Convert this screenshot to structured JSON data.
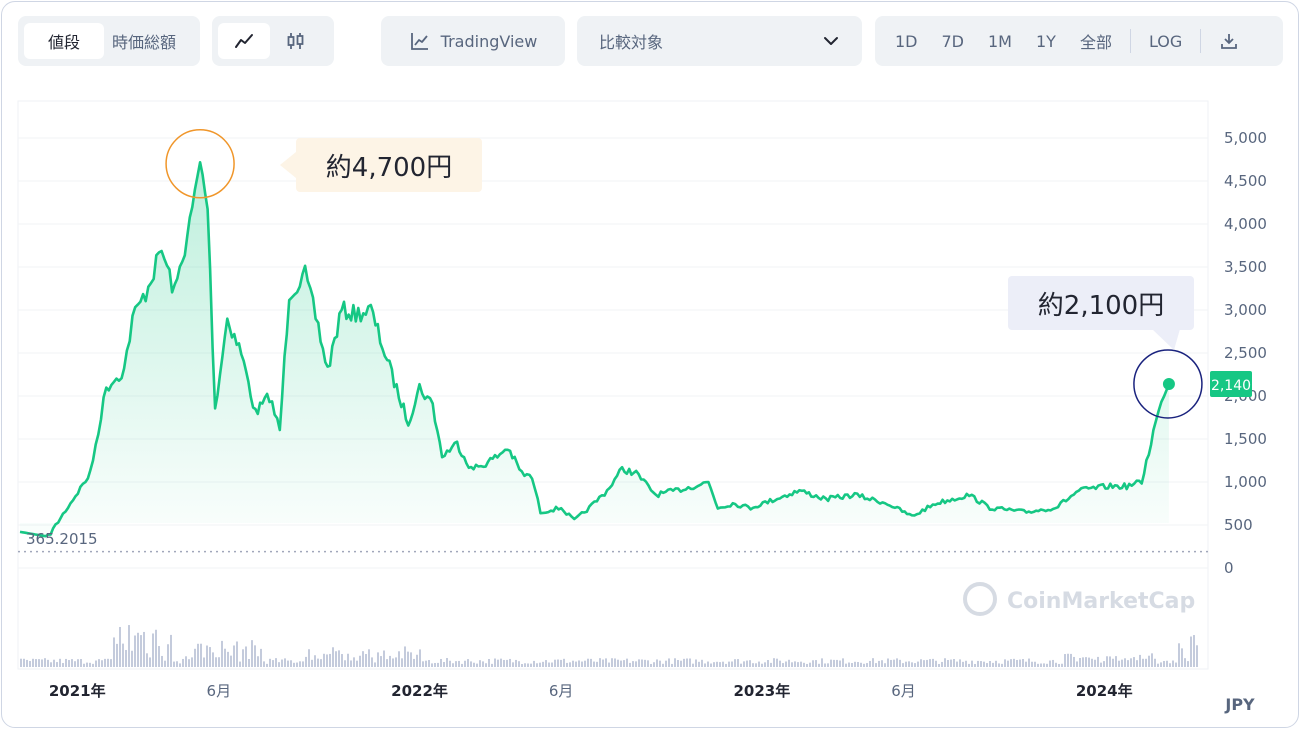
{
  "toolbar": {
    "type_tabs": [
      {
        "label": "値段",
        "active": true
      },
      {
        "label": "時価総額",
        "active": false
      }
    ],
    "style_icons": [
      "line-chart-icon",
      "candlestick-icon"
    ],
    "tradingview_label": "TradingView",
    "compare": {
      "label": "比較対象",
      "icon": "chevron-down-icon"
    },
    "ranges": [
      "1D",
      "7D",
      "1M",
      "1Y",
      "全部"
    ],
    "log_label": "LOG",
    "download_icon": "download-icon"
  },
  "colors": {
    "line": "#16c784",
    "area_top": "#16c784",
    "current_badge": "#16c784",
    "callout_high_ring": "#f0962a",
    "callout_current_ring": "#1a237e",
    "volume": "#c4cbdc"
  },
  "annotations": {
    "high": "約4,700円",
    "current": "約2,100円"
  },
  "current_price_label": "2,140",
  "baseline_label": "365.2015",
  "watermark": "CoinMarketCap",
  "currency_label": "JPY",
  "chart_data": {
    "type": "area",
    "ylim": [
      0,
      5000
    ],
    "y_ticks": [
      "5,000",
      "4,500",
      "4,000",
      "3,500",
      "3,000",
      "2,500",
      "2,000",
      "1,500",
      "1,000",
      "500",
      "0"
    ],
    "x_ticks": [
      "2021年",
      "6月",
      "2022年",
      "6月",
      "2023年",
      "6月",
      "2024年"
    ],
    "x_tick_dates": [
      "2021-01",
      "2021-06",
      "2022-01",
      "2022-06",
      "2023-01",
      "2023-06",
      "2024-01"
    ],
    "xlim": [
      "2020-11",
      "2024-03"
    ],
    "series": [
      {
        "points": [
          [
            "2020-11",
            420
          ],
          [
            "2020-12",
            365
          ],
          [
            "2021-01-15",
            1100
          ],
          [
            "2021-02",
            2100
          ],
          [
            "2021-02-20",
            2300
          ],
          [
            "2021-03",
            2900
          ],
          [
            "2021-03-15",
            3200
          ],
          [
            "2021-04",
            3700
          ],
          [
            "2021-04-15",
            3200
          ],
          [
            "2021-05",
            4000
          ],
          [
            "2021-05-12",
            4700
          ],
          [
            "2021-05-20",
            4200
          ],
          [
            "2021-05-28",
            1850
          ],
          [
            "2021-06-10",
            2900
          ],
          [
            "2021-06-25",
            2500
          ],
          [
            "2021-07-10",
            1800
          ],
          [
            "2021-07-25",
            2000
          ],
          [
            "2021-08-05",
            1600
          ],
          [
            "2021-08-15",
            3200
          ],
          [
            "2021-09-01",
            3400
          ],
          [
            "2021-09-15",
            2800
          ],
          [
            "2021-09-25",
            2300
          ],
          [
            "2021-10-10",
            3000
          ],
          [
            "2021-10-25",
            2950
          ],
          [
            "2021-11-10",
            3000
          ],
          [
            "2021-11-25",
            2500
          ],
          [
            "2021-12-10",
            2000
          ],
          [
            "2021-12-20",
            1700
          ],
          [
            "2022-01-01",
            2100
          ],
          [
            "2022-01-15",
            1900
          ],
          [
            "2022-01-25",
            1300
          ],
          [
            "2022-02-10",
            1450
          ],
          [
            "2022-02-25",
            1150
          ],
          [
            "2022-03-10",
            1200
          ],
          [
            "2022-03-25",
            1300
          ],
          [
            "2022-04-05",
            1400
          ],
          [
            "2022-04-20",
            1100
          ],
          [
            "2022-05-01",
            1050
          ],
          [
            "2022-05-10",
            650
          ],
          [
            "2022-06-01",
            700
          ],
          [
            "2022-06-15",
            550
          ],
          [
            "2022-07-01",
            700
          ],
          [
            "2022-07-20",
            900
          ],
          [
            "2022-08-05",
            1150
          ],
          [
            "2022-08-20",
            1100
          ],
          [
            "2022-09-10",
            850
          ],
          [
            "2022-10-01",
            900
          ],
          [
            "2022-10-20",
            950
          ],
          [
            "2022-11-05",
            1000
          ],
          [
            "2022-11-15",
            700
          ],
          [
            "2022-12-01",
            750
          ],
          [
            "2022-12-20",
            700
          ],
          [
            "2023-01-15",
            800
          ],
          [
            "2023-02-10",
            900
          ],
          [
            "2023-03-10",
            800
          ],
          [
            "2023-04-10",
            850
          ],
          [
            "2023-05-15",
            750
          ],
          [
            "2023-06-10",
            600
          ],
          [
            "2023-07-05",
            750
          ],
          [
            "2023-08-10",
            850
          ],
          [
            "2023-09-01",
            700
          ],
          [
            "2023-10-10",
            650
          ],
          [
            "2023-11-10",
            700
          ],
          [
            "2023-12-05",
            900
          ],
          [
            "2024-01-05",
            950
          ],
          [
            "2024-01-25",
            950
          ],
          [
            "2024-02-10",
            1000
          ],
          [
            "2024-02-25",
            1700
          ],
          [
            "2024-03-05",
            2000
          ],
          [
            "2024-03-10",
            2140
          ]
        ]
      }
    ]
  }
}
